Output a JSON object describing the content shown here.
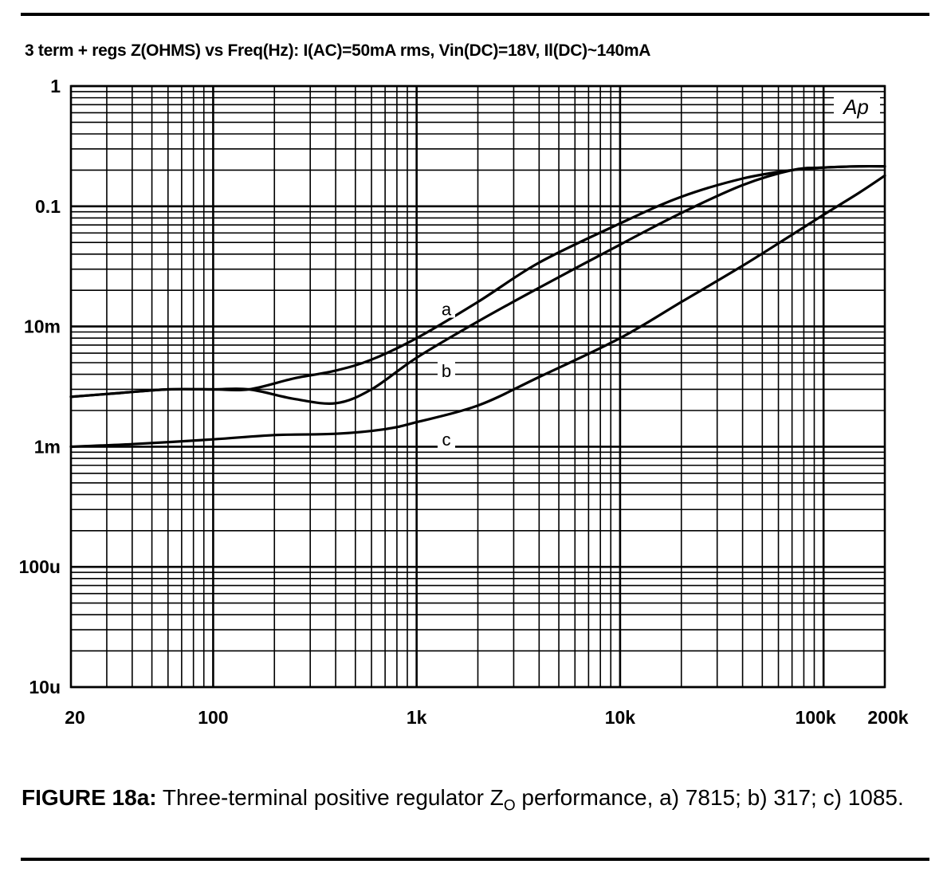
{
  "chart_data": {
    "type": "line",
    "title": "3 term + regs Z(OHMS) vs Freq(Hz): I(AC)=50mA rms, Vin(DC)=18V, Il(DC)~140mA",
    "x_scale": "log",
    "y_scale": "log",
    "xlim": [
      20,
      200000
    ],
    "ylim": [
      1e-05,
      1
    ],
    "grid": true,
    "x_ticks": [
      {
        "value": 20,
        "label": "20"
      },
      {
        "value": 100,
        "label": "100"
      },
      {
        "value": 1000,
        "label": "1k"
      },
      {
        "value": 10000,
        "label": "10k"
      },
      {
        "value": 100000,
        "label": "100k"
      },
      {
        "value": 200000,
        "label": "200k"
      }
    ],
    "y_ticks": [
      {
        "value": 1,
        "label": "1"
      },
      {
        "value": 0.1,
        "label": "0.1"
      },
      {
        "value": 0.01,
        "label": "10m"
      },
      {
        "value": 0.001,
        "label": "1m"
      },
      {
        "value": 0.0001,
        "label": "100u"
      },
      {
        "value": 1e-05,
        "label": "10u"
      }
    ],
    "watermark": "Ap",
    "series": [
      {
        "name": "a",
        "x": [
          20,
          35,
          60,
          100,
          150,
          250,
          400,
          600,
          1000,
          2000,
          4000,
          10000,
          20000,
          40000,
          70000,
          100000,
          150000,
          200000
        ],
        "y": [
          0.0026,
          0.0028,
          0.003,
          0.003,
          0.003,
          0.0037,
          0.0043,
          0.0053,
          0.008,
          0.016,
          0.034,
          0.072,
          0.12,
          0.17,
          0.2,
          0.21,
          0.215,
          0.215
        ]
      },
      {
        "name": "b",
        "x": [
          20,
          35,
          60,
          100,
          150,
          250,
          400,
          600,
          1000,
          2000,
          4000,
          10000,
          20000,
          40000,
          70000,
          100000,
          150000,
          200000
        ],
        "y": [
          0.0026,
          0.0028,
          0.003,
          0.003,
          0.003,
          0.0025,
          0.0023,
          0.003,
          0.0055,
          0.011,
          0.021,
          0.048,
          0.088,
          0.15,
          0.2,
          0.21,
          0.215,
          0.215
        ]
      },
      {
        "name": "c",
        "x": [
          20,
          40,
          100,
          200,
          400,
          700,
          1000,
          2000,
          4000,
          10000,
          20000,
          40000,
          70000,
          100000,
          150000,
          200000
        ],
        "y": [
          0.001,
          0.00105,
          0.00115,
          0.00125,
          0.00128,
          0.0014,
          0.0016,
          0.0022,
          0.0038,
          0.008,
          0.016,
          0.032,
          0.058,
          0.085,
          0.13,
          0.18
        ]
      }
    ],
    "series_labels": [
      {
        "name": "a",
        "text": "a",
        "x": 1400,
        "y": 0.014
      },
      {
        "name": "b",
        "text": "b",
        "x": 1400,
        "y": 0.0043
      },
      {
        "name": "c",
        "text": "c",
        "x": 1400,
        "y": 0.00115
      }
    ]
  },
  "caption": {
    "lead": "FIGURE 18a:",
    "text_before_sub": " Three-terminal positive regulator Z",
    "subscript": "O",
    "text_after_sub": " performance, a) 7815; b) 317; c) 1085."
  }
}
